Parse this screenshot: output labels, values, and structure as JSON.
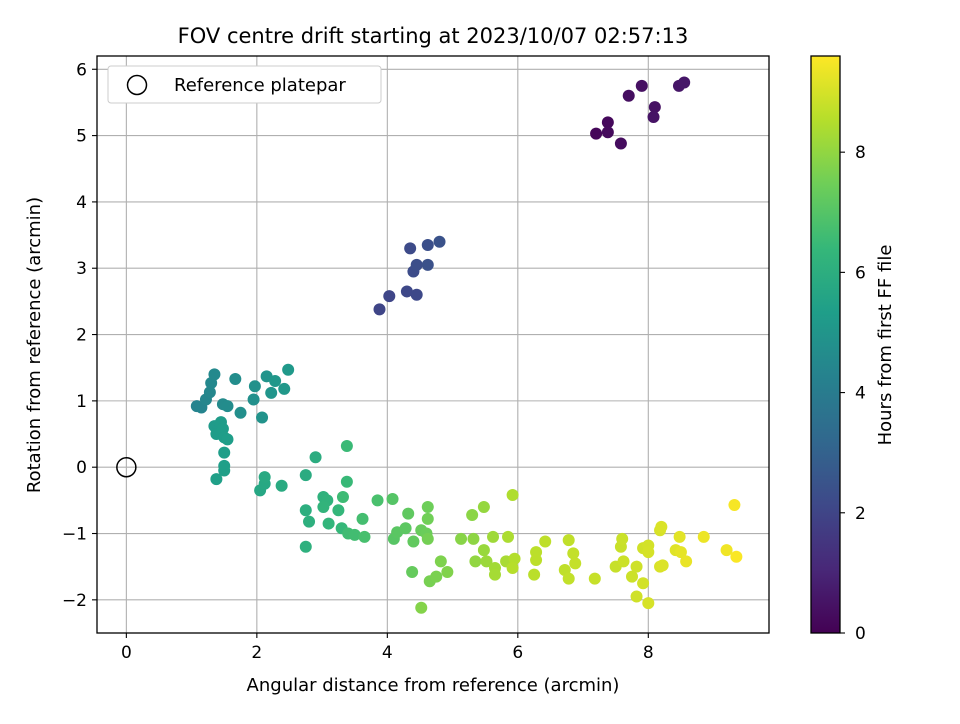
{
  "chart_data": {
    "type": "scatter",
    "title": "FOV centre drift starting at 2023/10/07 02:57:13",
    "xlabel": "Angular distance from reference (arcmin)",
    "ylabel": "Rotation from reference (arcmin)",
    "xlim": [
      -0.45,
      9.85
    ],
    "ylim": [
      -2.5,
      6.2
    ],
    "xticks": [
      "0",
      "2",
      "4",
      "6",
      "8"
    ],
    "yticks": [
      "−2",
      "−1",
      "0",
      "1",
      "2",
      "3",
      "4",
      "5",
      "6"
    ],
    "grid": true,
    "legend": {
      "placement": "top-left",
      "entries": [
        "Reference platepar"
      ]
    },
    "reference_point": {
      "x": 0,
      "y": 0
    },
    "colorbar": {
      "label": "Hours from first FF file",
      "range": [
        0,
        9.6
      ],
      "ticks": [
        "0",
        "2",
        "4",
        "6",
        "8"
      ],
      "colormap": "viridis",
      "colors": [
        "#440154",
        "#482878",
        "#3e4989",
        "#31688e",
        "#26828e",
        "#1f9e89",
        "#35b779",
        "#6ece58",
        "#b5de2b",
        "#fde725"
      ]
    },
    "points": [
      [
        7.2,
        5.03,
        0.15
      ],
      [
        7.38,
        5.2,
        0.2
      ],
      [
        7.38,
        5.05,
        0.25
      ],
      [
        7.58,
        4.88,
        0.3
      ],
      [
        7.7,
        5.6,
        0.35
      ],
      [
        7.9,
        5.75,
        0.4
      ],
      [
        8.1,
        5.43,
        0.45
      ],
      [
        8.08,
        5.28,
        0.5
      ],
      [
        8.47,
        5.75,
        0.55
      ],
      [
        8.55,
        5.8,
        0.6
      ],
      [
        3.88,
        2.38,
        2.0
      ],
      [
        4.03,
        2.58,
        2.05
      ],
      [
        4.3,
        2.65,
        2.1
      ],
      [
        4.45,
        2.6,
        2.15
      ],
      [
        4.35,
        3.3,
        2.2
      ],
      [
        4.4,
        2.95,
        2.25
      ],
      [
        4.45,
        3.05,
        2.3
      ],
      [
        4.62,
        3.35,
        2.35
      ],
      [
        4.62,
        3.05,
        2.4
      ],
      [
        4.8,
        3.4,
        2.45
      ],
      [
        1.08,
        0.92,
        4.3
      ],
      [
        1.15,
        0.9,
        4.35
      ],
      [
        1.22,
        1.02,
        4.4
      ],
      [
        1.28,
        1.13,
        4.45
      ],
      [
        1.3,
        1.27,
        4.5
      ],
      [
        1.35,
        1.4,
        4.55
      ],
      [
        1.48,
        0.95,
        4.6
      ],
      [
        1.55,
        0.92,
        4.65
      ],
      [
        1.67,
        1.33,
        4.7
      ],
      [
        1.75,
        0.82,
        4.75
      ],
      [
        1.95,
        1.02,
        4.8
      ],
      [
        1.97,
        1.22,
        4.85
      ],
      [
        2.08,
        0.75,
        4.9
      ],
      [
        2.15,
        1.37,
        4.95
      ],
      [
        2.22,
        1.12,
        5.0
      ],
      [
        2.28,
        1.3,
        5.05
      ],
      [
        2.42,
        1.18,
        5.1
      ],
      [
        2.48,
        1.47,
        5.15
      ],
      [
        1.35,
        0.62,
        5.2
      ],
      [
        1.4,
        0.55,
        5.22
      ],
      [
        1.45,
        0.68,
        5.24
      ],
      [
        1.38,
        0.5,
        5.26
      ],
      [
        1.48,
        0.58,
        5.28
      ],
      [
        1.5,
        0.45,
        5.3
      ],
      [
        1.55,
        0.42,
        5.32
      ],
      [
        1.5,
        0.22,
        5.34
      ],
      [
        1.5,
        0.02,
        5.36
      ],
      [
        1.5,
        -0.05,
        5.38
      ],
      [
        1.38,
        -0.18,
        5.4
      ],
      [
        2.05,
        -0.35,
        5.7
      ],
      [
        2.12,
        -0.25,
        5.75
      ],
      [
        2.12,
        -0.15,
        5.8
      ],
      [
        2.38,
        -0.28,
        5.85
      ],
      [
        2.75,
        -0.12,
        5.9
      ],
      [
        2.9,
        0.15,
        5.95
      ],
      [
        2.75,
        -0.65,
        6.0
      ],
      [
        2.8,
        -0.82,
        6.05
      ],
      [
        2.75,
        -1.2,
        6.1
      ],
      [
        3.02,
        -0.45,
        6.15
      ],
      [
        3.08,
        -0.5,
        6.2
      ],
      [
        3.02,
        -0.6,
        6.25
      ],
      [
        3.1,
        -0.85,
        6.3
      ],
      [
        3.25,
        -0.65,
        6.35
      ],
      [
        3.3,
        -0.92,
        6.4
      ],
      [
        3.38,
        -0.22,
        6.45
      ],
      [
        3.38,
        0.32,
        6.5
      ],
      [
        3.32,
        -0.45,
        6.55
      ],
      [
        3.4,
        -1.0,
        6.6
      ],
      [
        3.5,
        -1.02,
        6.65
      ],
      [
        3.62,
        -0.78,
        6.7
      ],
      [
        3.65,
        -1.05,
        6.75
      ],
      [
        3.85,
        -0.5,
        6.8
      ],
      [
        4.08,
        -0.48,
        7.0
      ],
      [
        4.1,
        -1.08,
        7.05
      ],
      [
        4.15,
        -0.98,
        7.1
      ],
      [
        4.28,
        -0.92,
        7.15
      ],
      [
        4.32,
        -0.7,
        7.2
      ],
      [
        4.4,
        -1.12,
        7.25
      ],
      [
        4.38,
        -1.58,
        7.3
      ],
      [
        4.52,
        -0.95,
        7.35
      ],
      [
        4.6,
        -1.0,
        7.4
      ],
      [
        4.62,
        -0.6,
        7.45
      ],
      [
        4.62,
        -0.78,
        7.5
      ],
      [
        4.62,
        -1.08,
        7.55
      ],
      [
        4.65,
        -1.72,
        7.6
      ],
      [
        4.75,
        -1.65,
        7.65
      ],
      [
        4.82,
        -1.42,
        7.7
      ],
      [
        4.92,
        -1.58,
        7.75
      ],
      [
        4.52,
        -2.12,
        7.8
      ],
      [
        5.13,
        -1.08,
        7.85
      ],
      [
        5.3,
        -0.72,
        7.9
      ],
      [
        5.32,
        -1.08,
        7.95
      ],
      [
        5.35,
        -1.42,
        8.0
      ],
      [
        5.48,
        -0.6,
        8.05
      ],
      [
        5.48,
        -1.25,
        8.1
      ],
      [
        5.52,
        -1.42,
        8.15
      ],
      [
        5.62,
        -1.05,
        8.2
      ],
      [
        5.65,
        -1.52,
        8.25
      ],
      [
        5.65,
        -1.62,
        8.3
      ],
      [
        5.82,
        -1.42,
        8.35
      ],
      [
        5.85,
        -1.05,
        8.4
      ],
      [
        5.92,
        -0.42,
        8.45
      ],
      [
        5.95,
        -1.38,
        8.5
      ],
      [
        5.92,
        -1.52,
        8.55
      ],
      [
        6.25,
        -1.62,
        8.6
      ],
      [
        6.28,
        -1.28,
        8.62
      ],
      [
        6.28,
        -1.4,
        8.64
      ],
      [
        6.42,
        -1.12,
        8.66
      ],
      [
        6.72,
        -1.55,
        8.68
      ],
      [
        6.78,
        -1.1,
        8.7
      ],
      [
        6.78,
        -1.68,
        8.72
      ],
      [
        6.85,
        -1.3,
        8.74
      ],
      [
        6.88,
        -1.45,
        8.76
      ],
      [
        7.18,
        -1.68,
        8.78
      ],
      [
        7.5,
        -1.5,
        8.8
      ],
      [
        7.58,
        -1.2,
        8.82
      ],
      [
        7.6,
        -1.08,
        8.84
      ],
      [
        7.62,
        -1.42,
        8.86
      ],
      [
        7.75,
        -1.65,
        8.88
      ],
      [
        7.82,
        -1.5,
        8.9
      ],
      [
        7.82,
        -1.95,
        8.92
      ],
      [
        7.92,
        -1.22,
        8.94
      ],
      [
        7.92,
        -1.75,
        8.96
      ],
      [
        8.0,
        -1.18,
        8.98
      ],
      [
        8.0,
        -1.28,
        9.0
      ],
      [
        8.0,
        -2.05,
        9.02
      ],
      [
        8.18,
        -0.95,
        9.04
      ],
      [
        8.18,
        -1.5,
        9.06
      ],
      [
        8.2,
        -0.9,
        9.08
      ],
      [
        8.22,
        -1.48,
        9.1
      ],
      [
        8.42,
        -1.25,
        9.15
      ],
      [
        8.48,
        -1.05,
        9.2
      ],
      [
        8.5,
        -1.28,
        9.25
      ],
      [
        8.58,
        -1.42,
        9.3
      ],
      [
        8.85,
        -1.05,
        9.35
      ],
      [
        9.2,
        -1.25,
        9.4
      ],
      [
        9.32,
        -0.57,
        9.5
      ],
      [
        9.35,
        -1.35,
        9.55
      ]
    ]
  }
}
